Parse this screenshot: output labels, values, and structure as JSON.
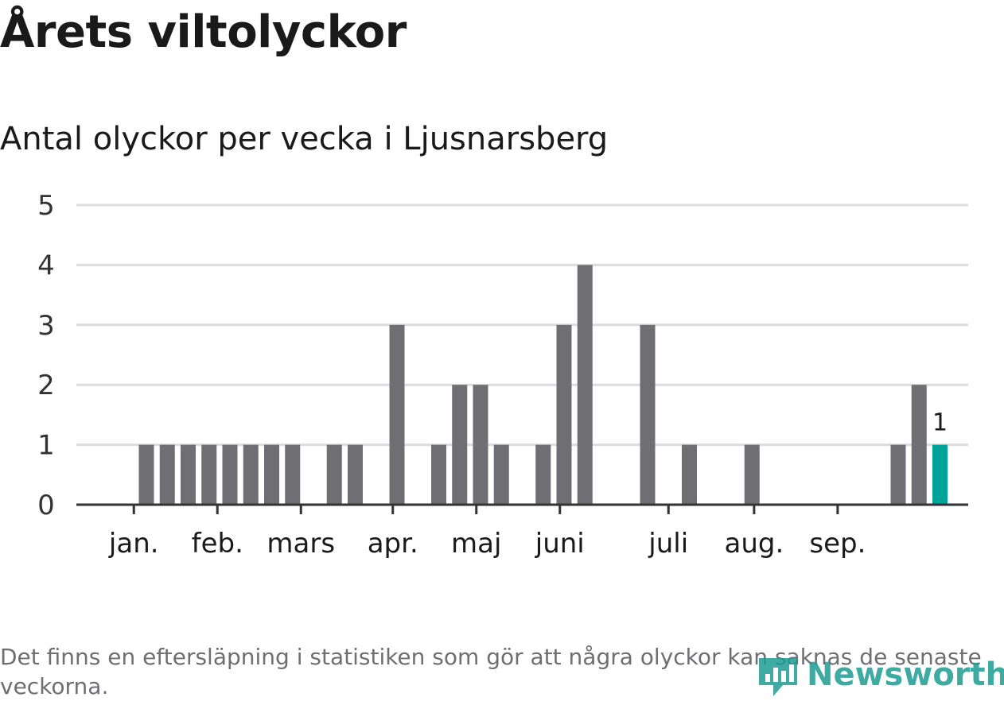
{
  "title": "Årets viltolyckor",
  "subtitle": "Antal olyckor per vecka i Ljusnarsberg",
  "footnote": "Det finns en eftersläpning i statistiken som gör att några olyckor kan saknas de senaste veckorna.",
  "brand": {
    "name": "Newsworthy"
  },
  "colors": {
    "bar": "#6f6e73",
    "highlight": "#00a39a",
    "grid": "#dcdcdc",
    "axis": "#333333",
    "text": "#1a1a1a",
    "brand": "#1d9c92"
  },
  "chart_data": {
    "type": "bar",
    "title": "Antal olyckor per vecka i Ljusnarsberg",
    "xlabel": "",
    "ylabel": "",
    "ylim": [
      0,
      5
    ],
    "yticks": [
      0,
      1,
      2,
      3,
      4,
      5
    ],
    "weeks": [
      1,
      2,
      3,
      4,
      5,
      6,
      7,
      8,
      9,
      10,
      11,
      12,
      13,
      14,
      15,
      16,
      17,
      18,
      19,
      20,
      21,
      22,
      23,
      24,
      25,
      26,
      27,
      28,
      29,
      30,
      31,
      32,
      33,
      34,
      35,
      36,
      37,
      38,
      39,
      40
    ],
    "values": [
      0,
      1,
      1,
      1,
      1,
      1,
      1,
      1,
      1,
      0,
      1,
      1,
      0,
      3,
      0,
      1,
      2,
      2,
      1,
      0,
      1,
      3,
      4,
      0,
      0,
      3,
      0,
      1,
      0,
      0,
      1,
      0,
      0,
      0,
      0,
      0,
      0,
      1,
      2,
      1
    ],
    "highlight_index": 39,
    "highlight_label": "1",
    "month_ticks": [
      {
        "label": "jan.",
        "week": 1.4
      },
      {
        "label": "feb.",
        "week": 5.4
      },
      {
        "label": "mars",
        "week": 9.4
      },
      {
        "label": "apr.",
        "week": 13.8
      },
      {
        "label": "maj",
        "week": 17.8
      },
      {
        "label": "juni",
        "week": 21.8
      },
      {
        "label": "juli",
        "week": 27.0
      },
      {
        "label": "aug.",
        "week": 31.1
      },
      {
        "label": "sep.",
        "week": 35.1
      }
    ]
  }
}
